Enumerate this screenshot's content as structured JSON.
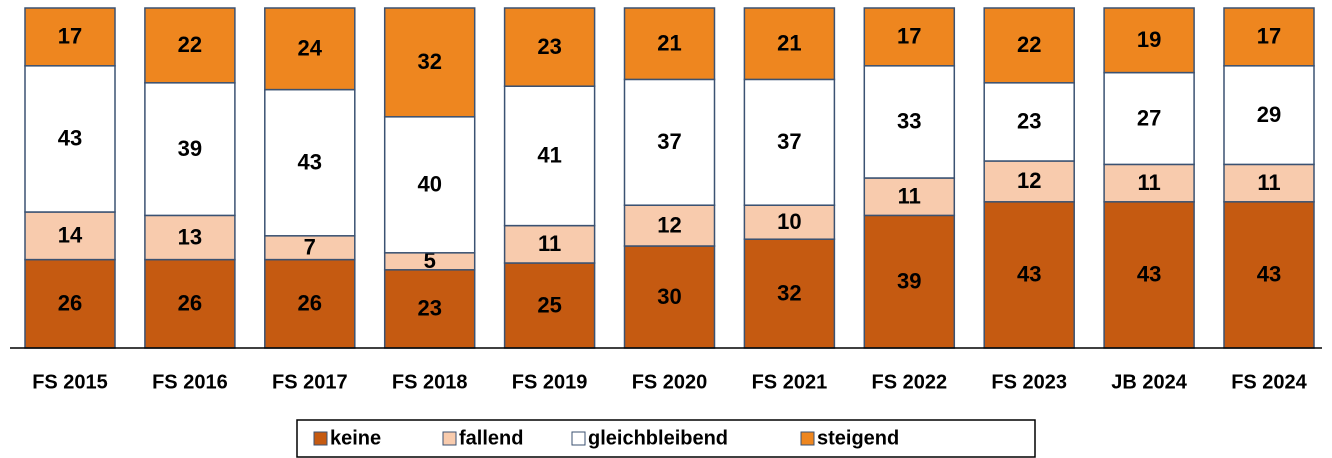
{
  "chart_data": {
    "type": "stacked_bar",
    "categories": [
      "FS 2015",
      "FS 2016",
      "FS 2017",
      "FS 2018",
      "FS 2019",
      "FS 2020",
      "FS 2021",
      "FS 2022",
      "FS 2023",
      "JB 2024",
      "FS 2024"
    ],
    "series": [
      {
        "name": "keine",
        "color": "#c55a11",
        "values": [
          26,
          26,
          26,
          23,
          25,
          30,
          32,
          39,
          43,
          43,
          43
        ]
      },
      {
        "name": "fallend",
        "color": "#f8cbad",
        "values": [
          14,
          13,
          7,
          5,
          11,
          12,
          10,
          11,
          12,
          11,
          11
        ]
      },
      {
        "name": "gleichbleibend",
        "color": "#ffffff",
        "values": [
          43,
          39,
          43,
          40,
          41,
          37,
          37,
          33,
          23,
          27,
          29
        ]
      },
      {
        "name": "steigend",
        "color": "#ee861f",
        "values": [
          17,
          22,
          24,
          32,
          23,
          21,
          21,
          17,
          22,
          19,
          17
        ]
      }
    ],
    "ylim": [
      0,
      100
    ],
    "legend": "bottom"
  }
}
